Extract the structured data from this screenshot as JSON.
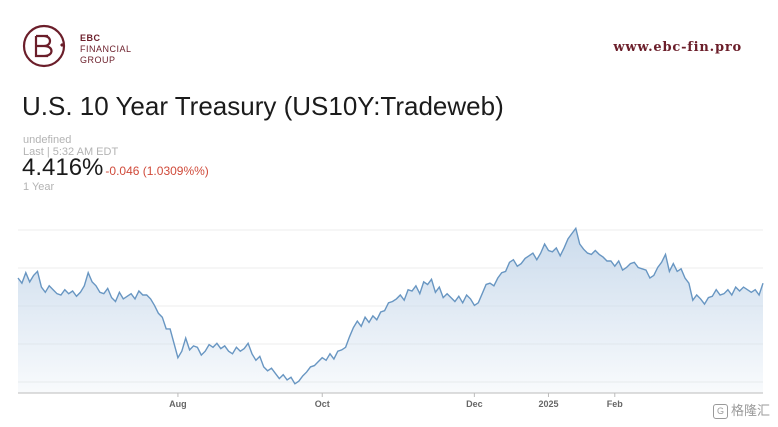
{
  "header": {
    "logo_line1": "EBC",
    "logo_line2": "FINANCIAL",
    "logo_line3": "GROUP",
    "site": "www.ebc-fin.pro",
    "brand_color": "#6b1e2a"
  },
  "quote": {
    "title": "U.S. 10 Year Treasury (US10Y:Tradeweb)",
    "meta1": "undefined",
    "meta2": "Last | 5:32 AM EDT",
    "price": "4.416%",
    "change": "-0.046 (1.0309%%)",
    "range": "1 Year"
  },
  "watermark": {
    "icon": "G",
    "text": "格隆汇"
  },
  "chart_data": {
    "type": "area",
    "x_ticks": [
      "Aug",
      "Oct",
      "Dec",
      "2025",
      "Feb"
    ],
    "x_tick_index": [
      41,
      78,
      117,
      136,
      153
    ],
    "values": [
      4.43,
      4.39,
      4.47,
      4.4,
      4.45,
      4.48,
      4.36,
      4.32,
      4.37,
      4.34,
      4.31,
      4.3,
      4.34,
      4.31,
      4.33,
      4.29,
      4.32,
      4.37,
      4.47,
      4.4,
      4.37,
      4.32,
      4.31,
      4.35,
      4.28,
      4.25,
      4.32,
      4.27,
      4.29,
      4.31,
      4.27,
      4.33,
      4.3,
      4.3,
      4.27,
      4.22,
      4.16,
      4.13,
      4.04,
      4.04,
      3.93,
      3.82,
      3.87,
      3.97,
      3.88,
      3.91,
      3.9,
      3.84,
      3.87,
      3.92,
      3.9,
      3.93,
      3.89,
      3.91,
      3.87,
      3.85,
      3.9,
      3.87,
      3.89,
      3.93,
      3.85,
      3.8,
      3.83,
      3.75,
      3.72,
      3.74,
      3.7,
      3.66,
      3.69,
      3.65,
      3.67,
      3.62,
      3.64,
      3.68,
      3.71,
      3.75,
      3.76,
      3.79,
      3.82,
      3.8,
      3.85,
      3.81,
      3.87,
      3.88,
      3.9,
      3.98,
      4.05,
      4.1,
      4.06,
      4.13,
      4.09,
      4.14,
      4.11,
      4.17,
      4.18,
      4.24,
      4.25,
      4.27,
      4.3,
      4.26,
      4.34,
      4.33,
      4.37,
      4.31,
      4.4,
      4.38,
      4.42,
      4.32,
      4.36,
      4.28,
      4.31,
      4.28,
      4.25,
      4.29,
      4.24,
      4.3,
      4.27,
      4.22,
      4.24,
      4.31,
      4.38,
      4.39,
      4.37,
      4.43,
      4.47,
      4.48,
      4.55,
      4.57,
      4.52,
      4.54,
      4.58,
      4.6,
      4.62,
      4.57,
      4.62,
      4.69,
      4.64,
      4.63,
      4.66,
      4.6,
      4.66,
      4.73,
      4.77,
      4.81,
      4.69,
      4.65,
      4.62,
      4.61,
      4.64,
      4.61,
      4.59,
      4.56,
      4.56,
      4.52,
      4.56,
      4.49,
      4.51,
      4.54,
      4.55,
      4.51,
      4.5,
      4.49,
      4.43,
      4.45,
      4.51,
      4.55,
      4.61,
      4.48,
      4.54,
      4.48,
      4.5,
      4.43,
      4.39,
      4.26,
      4.3,
      4.27,
      4.23,
      4.28,
      4.29,
      4.34,
      4.3,
      4.31,
      4.34,
      4.3,
      4.36,
      4.33,
      4.36,
      4.34,
      4.32,
      4.34,
      4.3,
      4.39
    ],
    "ylim": [
      3.55,
      4.95
    ],
    "line_color": "#6896c2",
    "fill_color": "#c8d9eb"
  }
}
